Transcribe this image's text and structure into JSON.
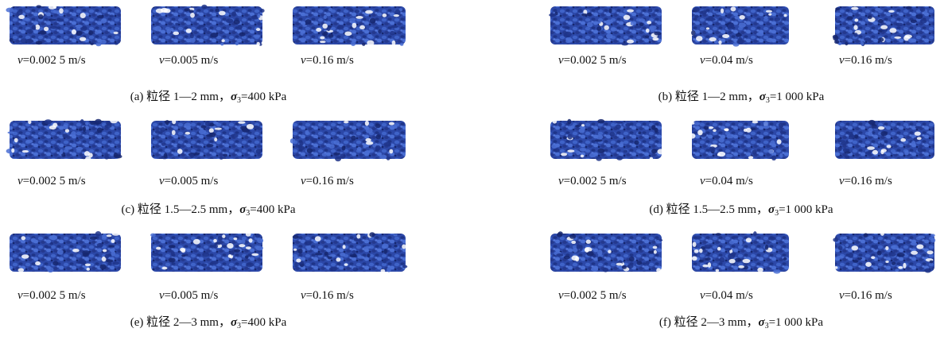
{
  "panels": [
    {
      "labels": [
        {
          "var": "v",
          "text": "=0.002 5 m/s"
        },
        {
          "var": "v",
          "text": "=0.005 m/s"
        },
        {
          "var": "v",
          "text": "=0.16 m/s"
        }
      ],
      "caption": {
        "text": "(a)  粒径 1—2 mm，",
        "symbol": "σ",
        "subscript": "3",
        "value": "=400 kPa"
      }
    },
    {
      "labels": [
        {
          "var": "v",
          "text": "=0.002 5 m/s"
        },
        {
          "var": "v",
          "text": "=0.04 m/s"
        },
        {
          "var": "v",
          "text": "=0.16 m/s"
        }
      ],
      "caption": {
        "text": "(b)  粒径 1—2 mm，",
        "symbol": "σ",
        "subscript": "3",
        "value": "=1 000 kPa"
      }
    },
    {
      "labels": [
        {
          "var": "v",
          "text": "=0.002 5 m/s"
        },
        {
          "var": "v",
          "text": "=0.005 m/s"
        },
        {
          "var": "v",
          "text": "=0.16 m/s"
        }
      ],
      "caption": {
        "text": "(c)  粒径 1.5—2.5 mm，",
        "symbol": "σ",
        "subscript": "3",
        "value": "=400 kPa"
      }
    },
    {
      "labels": [
        {
          "var": "v",
          "text": "=0.002 5 m/s"
        },
        {
          "var": "v",
          "text": "=0.04 m/s"
        },
        {
          "var": "v",
          "text": "=0.16 m/s"
        }
      ],
      "caption": {
        "text": "(d)  粒径 1.5—2.5 mm，",
        "symbol": "σ",
        "subscript": "3",
        "value": "=1 000 kPa"
      }
    },
    {
      "labels": [
        {
          "var": "v",
          "text": "=0.002 5 m/s"
        },
        {
          "var": "v",
          "text": "=0.005 m/s"
        },
        {
          "var": "v",
          "text": "=0.16 m/s"
        }
      ],
      "caption": {
        "text": "(e)  粒径 2—3 mm，",
        "symbol": "σ",
        "subscript": "3",
        "value": "=400 kPa"
      }
    },
    {
      "labels": [
        {
          "var": "v",
          "text": "=0.002 5 m/s"
        },
        {
          "var": "v",
          "text": "=0.04 m/s"
        },
        {
          "var": "v",
          "text": "=0.16 m/s"
        }
      ],
      "caption": {
        "text": "(f)  粒径 2—3 mm，",
        "symbol": "σ",
        "subscript": "3",
        "value": "=1 000 kPa"
      }
    }
  ]
}
